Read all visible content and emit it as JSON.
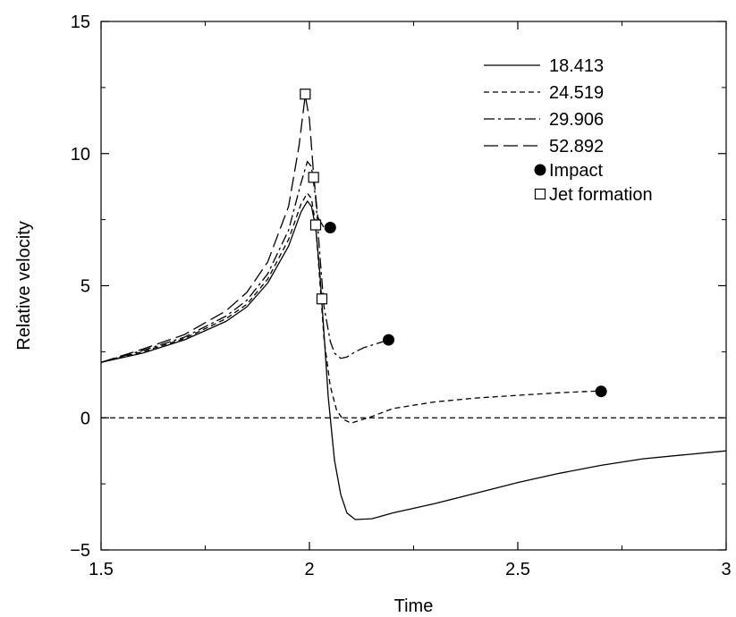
{
  "chart_data": {
    "type": "line",
    "xlabel": "Time",
    "ylabel": "Relative velocity",
    "xlim": [
      1.5,
      3
    ],
    "ylim": [
      -5,
      15
    ],
    "xticks": [
      1.5,
      2,
      2.5,
      3
    ],
    "xtick_labels": [
      "1.5",
      "2",
      "2.5",
      "3"
    ],
    "yticks": [
      -5,
      0,
      5,
      10,
      15
    ],
    "ytick_labels": [
      "−5",
      "0",
      "5",
      "10",
      "15"
    ],
    "grid": false,
    "legend_position": "top-right",
    "reference_line": {
      "y": 0,
      "style": "dashed"
    },
    "series": [
      {
        "name": "18.413",
        "style": "solid",
        "points": [
          [
            1.5,
            2.1
          ],
          [
            1.6,
            2.45
          ],
          [
            1.7,
            2.95
          ],
          [
            1.8,
            3.65
          ],
          [
            1.85,
            4.2
          ],
          [
            1.9,
            5.1
          ],
          [
            1.95,
            6.5
          ],
          [
            1.98,
            7.8
          ],
          [
            1.995,
            8.2
          ],
          [
            2.005,
            8.0
          ],
          [
            2.015,
            7.2
          ],
          [
            2.025,
            5.5
          ],
          [
            2.035,
            3.2
          ],
          [
            2.045,
            0.8
          ],
          [
            2.06,
            -1.6
          ],
          [
            2.075,
            -2.9
          ],
          [
            2.09,
            -3.6
          ],
          [
            2.11,
            -3.85
          ],
          [
            2.15,
            -3.82
          ],
          [
            2.2,
            -3.6
          ],
          [
            2.3,
            -3.25
          ],
          [
            2.4,
            -2.85
          ],
          [
            2.5,
            -2.45
          ],
          [
            2.6,
            -2.1
          ],
          [
            2.7,
            -1.8
          ],
          [
            2.8,
            -1.55
          ],
          [
            2.9,
            -1.4
          ],
          [
            3.0,
            -1.25
          ]
        ]
      },
      {
        "name": "24.519",
        "style": "dashed",
        "points": [
          [
            1.5,
            2.1
          ],
          [
            1.6,
            2.5
          ],
          [
            1.7,
            3.0
          ],
          [
            1.8,
            3.75
          ],
          [
            1.85,
            4.3
          ],
          [
            1.9,
            5.25
          ],
          [
            1.95,
            6.75
          ],
          [
            1.98,
            8.1
          ],
          [
            1.995,
            8.5
          ],
          [
            2.005,
            8.3
          ],
          [
            2.015,
            7.3
          ],
          [
            2.025,
            5.2
          ],
          [
            2.035,
            3.0
          ],
          [
            2.05,
            1.2
          ],
          [
            2.065,
            0.3
          ],
          [
            2.08,
            -0.05
          ],
          [
            2.1,
            -0.2
          ],
          [
            2.15,
            0.05
          ],
          [
            2.2,
            0.35
          ],
          [
            2.3,
            0.6
          ],
          [
            2.4,
            0.75
          ],
          [
            2.5,
            0.85
          ],
          [
            2.6,
            0.95
          ],
          [
            2.7,
            1.02
          ]
        ]
      },
      {
        "name": "29.906",
        "style": "dash-dot",
        "points": [
          [
            1.5,
            2.1
          ],
          [
            1.6,
            2.55
          ],
          [
            1.7,
            3.05
          ],
          [
            1.8,
            3.85
          ],
          [
            1.85,
            4.45
          ],
          [
            1.9,
            5.45
          ],
          [
            1.95,
            7.1
          ],
          [
            1.98,
            8.9
          ],
          [
            1.995,
            9.7
          ],
          [
            2.005,
            9.5
          ],
          [
            2.015,
            8.3
          ],
          [
            2.025,
            6.2
          ],
          [
            2.035,
            4.2
          ],
          [
            2.05,
            2.9
          ],
          [
            2.06,
            2.45
          ],
          [
            2.075,
            2.25
          ],
          [
            2.09,
            2.3
          ],
          [
            2.11,
            2.5
          ],
          [
            2.13,
            2.65
          ],
          [
            2.16,
            2.8
          ],
          [
            2.19,
            2.95
          ]
        ]
      },
      {
        "name": "52.892",
        "style": "long-dash",
        "points": [
          [
            1.5,
            2.1
          ],
          [
            1.6,
            2.6
          ],
          [
            1.7,
            3.15
          ],
          [
            1.8,
            4.05
          ],
          [
            1.85,
            4.75
          ],
          [
            1.9,
            5.9
          ],
          [
            1.95,
            8.0
          ],
          [
            1.975,
            10.3
          ],
          [
            1.99,
            12.2
          ],
          [
            2.0,
            11.3
          ],
          [
            2.01,
            9.2
          ],
          [
            2.02,
            7.6
          ],
          [
            2.035,
            7.2
          ],
          [
            2.05,
            7.2
          ]
        ]
      }
    ],
    "markers": [
      {
        "name": "Impact",
        "symbol": "filled-circle",
        "points": [
          [
            2.05,
            7.2
          ],
          [
            2.19,
            2.95
          ],
          [
            2.7,
            1.0
          ]
        ]
      },
      {
        "name": "Jet formation",
        "symbol": "open-square",
        "points": [
          [
            1.99,
            12.25
          ],
          [
            2.01,
            9.1
          ],
          [
            2.015,
            7.3
          ],
          [
            2.03,
            4.5
          ]
        ]
      }
    ],
    "legend": [
      "18.413",
      "24.519",
      "29.906",
      "52.892",
      "Impact",
      "Jet formation"
    ]
  }
}
